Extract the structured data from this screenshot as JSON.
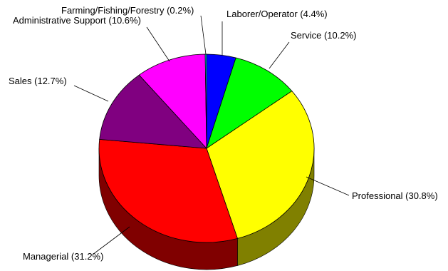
{
  "chart_data": {
    "type": "pie",
    "style": "3d",
    "title": "",
    "slices": [
      {
        "label": "Laborer/Operator (4.4%)",
        "value": 4.4,
        "color": "#0000ff"
      },
      {
        "label": "Service (10.2%)",
        "value": 10.2,
        "color": "#00ff00"
      },
      {
        "label": "Professional (30.8%)",
        "value": 30.8,
        "color": "#ffff00"
      },
      {
        "label": "Managerial (31.2%)",
        "value": 31.2,
        "color": "#ff0000"
      },
      {
        "label": "Sales (12.7%)",
        "value": 12.7,
        "color": "#800080"
      },
      {
        "label": "Administrative Support (10.6%)",
        "value": 10.6,
        "color": "#ff00ff"
      },
      {
        "label": "Farming/Fishing/Forestry (0.2%)",
        "value": 0.2,
        "color": "#00ffff"
      }
    ],
    "legend": "none"
  }
}
